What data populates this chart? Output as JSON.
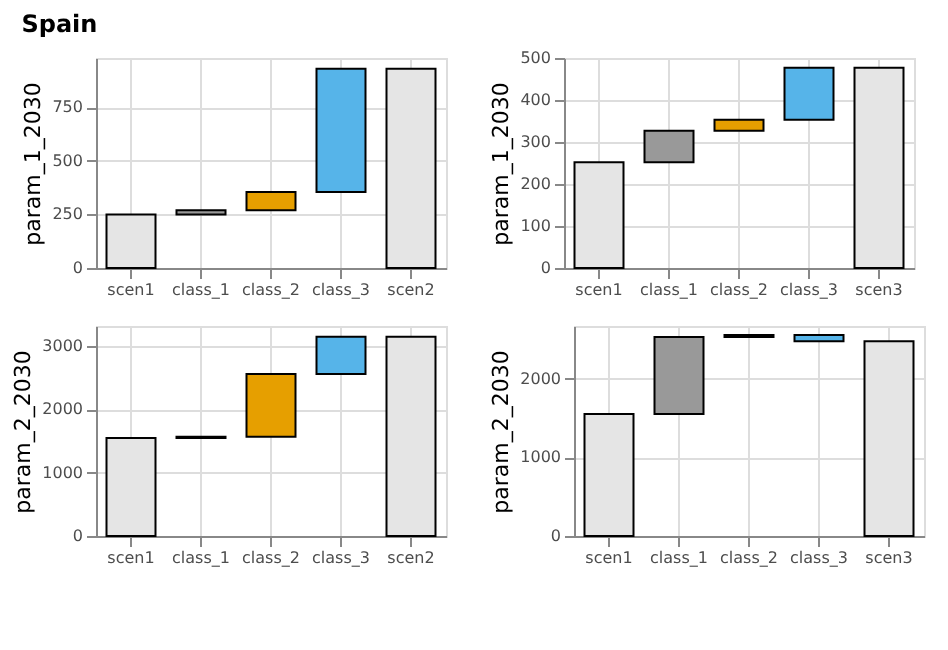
{
  "chart_data": [
    {
      "type": "bar",
      "title": "Spain",
      "ylabel": "param_1_2030",
      "categories": [
        "scen1",
        "class_1",
        "class_2",
        "class_3",
        "scen2"
      ],
      "values": [
        250,
        20,
        85,
        575,
        930
      ],
      "base": [
        0,
        250,
        270,
        355,
        0
      ],
      "colors": [
        "#e5e5e5",
        "#999999",
        "#e69f00",
        "#56b4e9",
        "#e5e5e5"
      ],
      "ylim": [
        0,
        980
      ],
      "yticks": [
        0,
        250,
        500,
        750
      ],
      "grid": true
    },
    {
      "type": "bar",
      "ylabel": "param_1_2030",
      "categories": [
        "scen1",
        "class_1",
        "class_2",
        "class_3",
        "scen3"
      ],
      "values": [
        252,
        75,
        26,
        124,
        477
      ],
      "base": [
        0,
        252,
        327,
        353,
        0
      ],
      "colors": [
        "#e5e5e5",
        "#999999",
        "#e69f00",
        "#56b4e9",
        "#e5e5e5"
      ],
      "ylim": [
        0,
        500
      ],
      "yticks": [
        0,
        100,
        200,
        300,
        400,
        500
      ],
      "grid": true
    },
    {
      "type": "bar",
      "ylabel": "param_2_2030",
      "categories": [
        "scen1",
        "class_1",
        "class_2",
        "class_3",
        "scen2"
      ],
      "values": [
        1550,
        20,
        990,
        590,
        3150
      ],
      "base": [
        0,
        1550,
        1570,
        2560,
        0
      ],
      "colors": [
        "#e5e5e5",
        "#999999",
        "#e69f00",
        "#56b4e9",
        "#e5e5e5"
      ],
      "ylim": [
        0,
        3320
      ],
      "yticks": [
        0,
        1000,
        2000,
        3000
      ],
      "grid": true
    },
    {
      "type": "bar",
      "ylabel": "param_2_2030",
      "categories": [
        "scen1",
        "class_1",
        "class_2",
        "class_3",
        "scen3"
      ],
      "values": [
        1550,
        980,
        25,
        -80,
        2475
      ],
      "base": [
        0,
        1550,
        2530,
        2555,
        0
      ],
      "colors": [
        "#e5e5e5",
        "#999999",
        "#e69f00",
        "#56b4e9",
        "#e5e5e5"
      ],
      "ylim": [
        0,
        2670
      ],
      "yticks": [
        0,
        1000,
        2000
      ],
      "grid": true
    }
  ]
}
